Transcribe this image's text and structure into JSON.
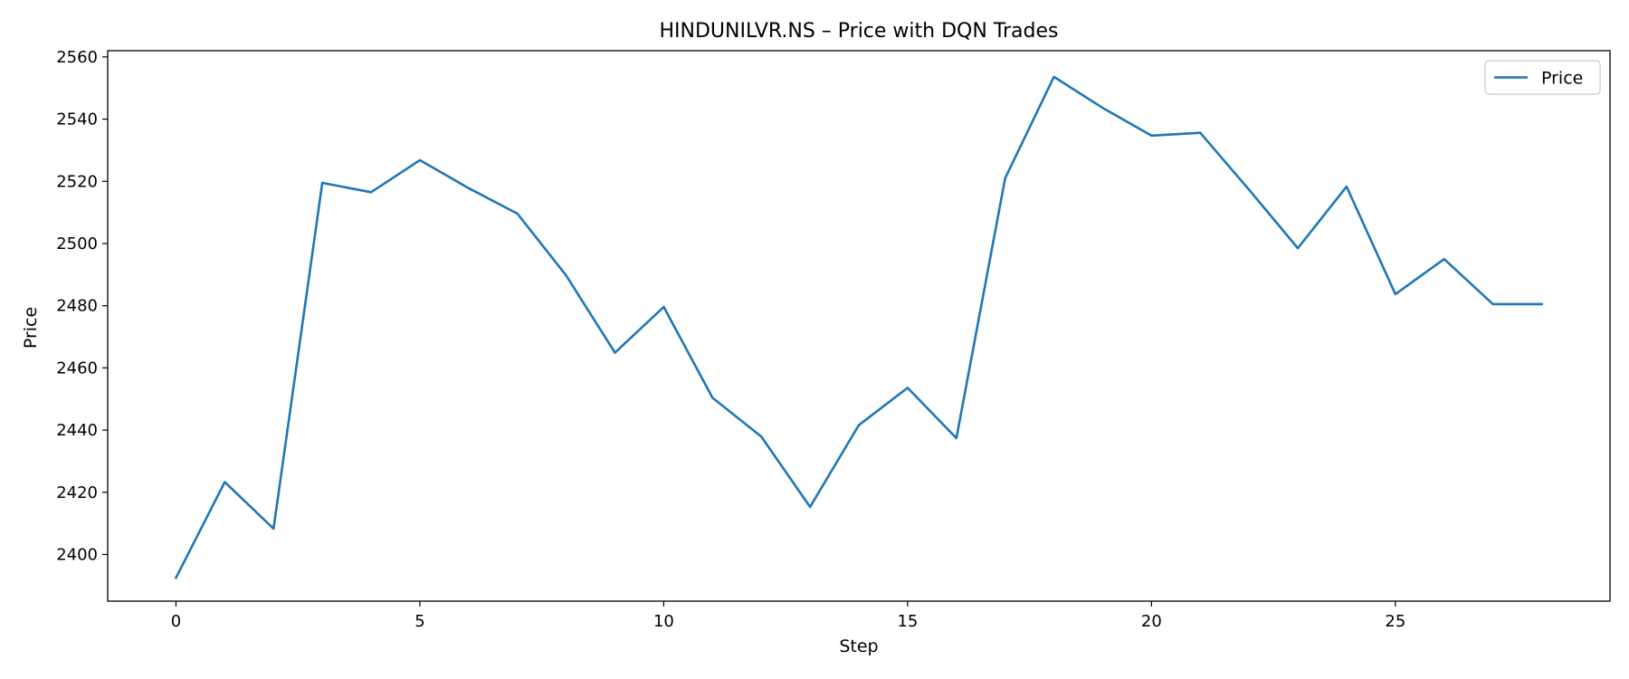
{
  "chart_data": {
    "type": "line",
    "title": "HINDUNILVR.NS – Price with DQN Trades",
    "xlabel": "Step",
    "ylabel": "Price",
    "xlim": [
      -1.4,
      29.4
    ],
    "ylim": [
      2385,
      2562
    ],
    "x_ticks": [
      0,
      5,
      10,
      15,
      20,
      25
    ],
    "y_ticks": [
      2400,
      2420,
      2440,
      2460,
      2480,
      2500,
      2520,
      2540,
      2560
    ],
    "grid": false,
    "legend_position": "upper right",
    "series": [
      {
        "name": "Price",
        "color": "#1f77b4",
        "x": [
          0,
          1,
          2,
          3,
          4,
          5,
          6,
          7,
          8,
          9,
          10,
          11,
          12,
          13,
          14,
          15,
          16,
          17,
          18,
          19,
          20,
          21,
          22,
          23,
          24,
          25,
          26,
          27,
          28
        ],
        "values": [
          2392.5,
          2423.3,
          2408.3,
          2519.5,
          2516.5,
          2526.8,
          2517.8,
          2509.6,
          2489.7,
          2464.9,
          2479.6,
          2450.4,
          2437.9,
          2415.3,
          2441.6,
          2453.6,
          2437.4,
          2521.0,
          2553.6,
          2543.6,
          2534.7,
          2535.6,
          2517.3,
          2498.5,
          2518.3,
          2483.7,
          2495.0,
          2480.5,
          2480.5
        ]
      }
    ]
  }
}
